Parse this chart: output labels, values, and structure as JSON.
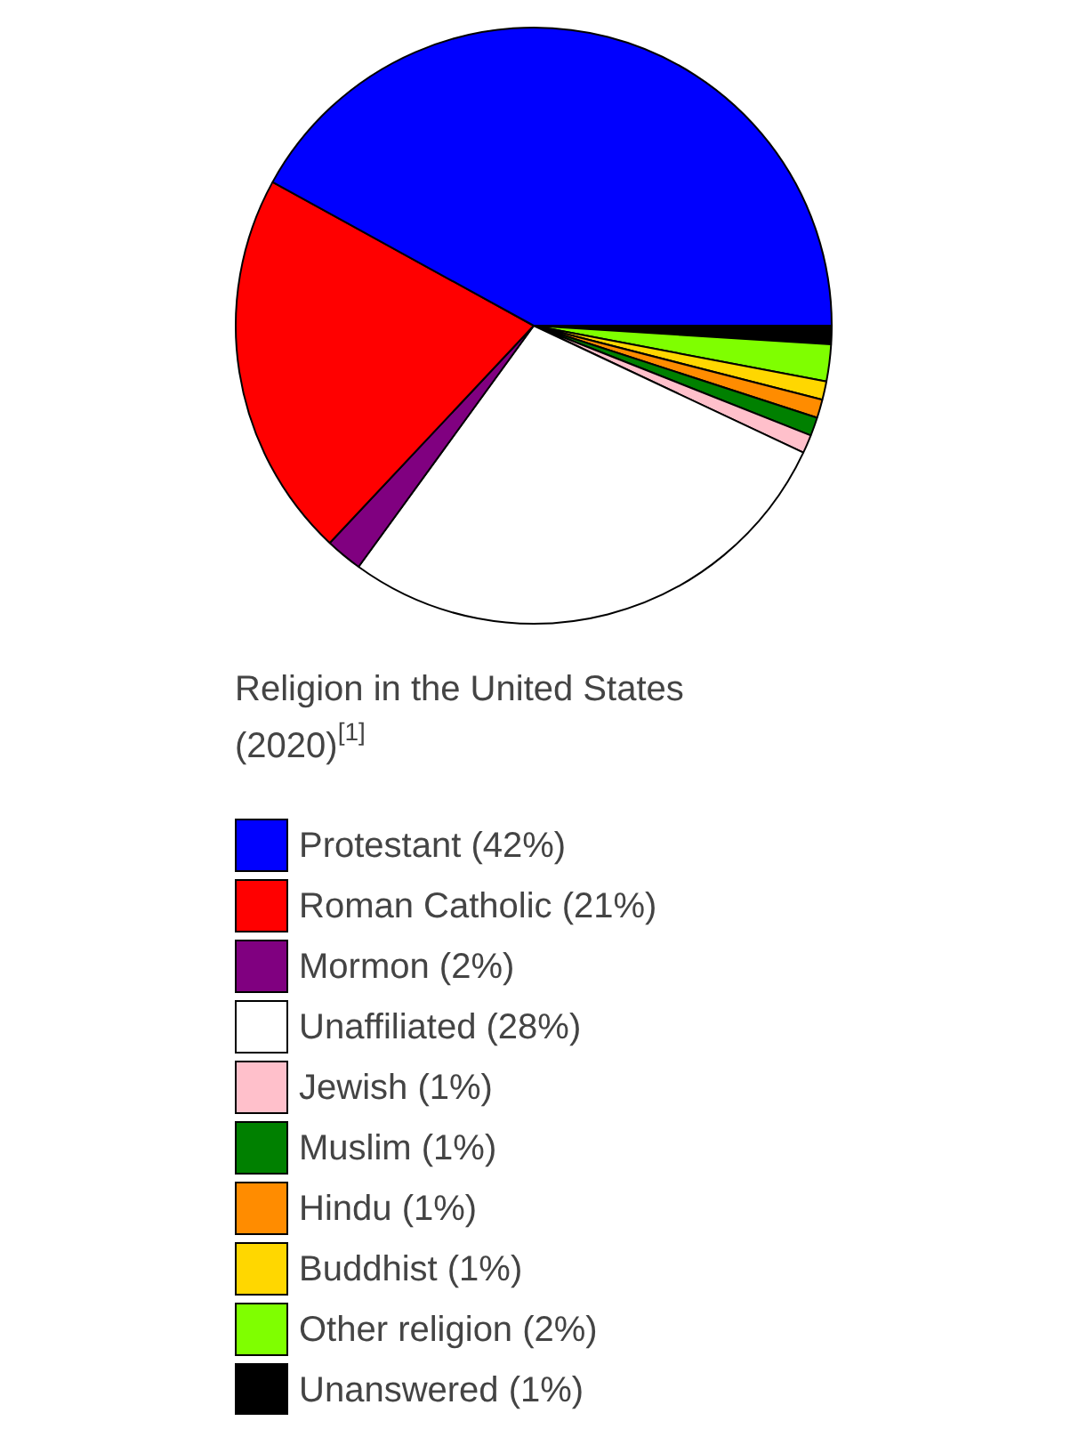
{
  "chart_data": {
    "type": "pie",
    "title": "Religion in the United States (2020)$^{[1]}$",
    "categories": [
      "Protestant (42%)",
      "Roman Catholic (21%)",
      "Mormon (2%)",
      "Unaffiliated (28%)",
      "Jewish (1%)",
      "Muslim (1%)",
      "Hindu (1%)",
      "Buddhist (1%)",
      "Other religion (2%)",
      "Unanswered (1%)"
    ],
    "values": [
      42,
      21,
      2,
      28,
      1,
      1,
      1,
      1,
      2,
      1
    ],
    "colors": [
      "#0000ff",
      "#ff0000",
      "#800080",
      "#ffffff",
      "#ffc0cb",
      "#008000",
      "#ff8c00",
      "#ffd700",
      "#7fff00",
      "#000000"
    ],
    "legend": "bottom"
  }
}
